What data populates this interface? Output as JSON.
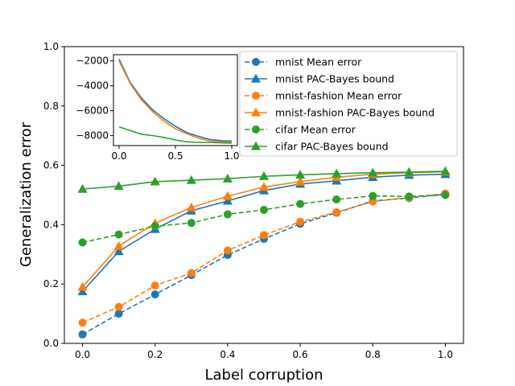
{
  "chart_data": [
    {
      "type": "line",
      "title": "",
      "xlabel": "Label corruption",
      "ylabel": "Generalization error",
      "xlim": [
        -0.05,
        1.05
      ],
      "ylim": [
        0.0,
        1.0
      ],
      "xticks": [
        "0.0",
        "0.2",
        "0.4",
        "0.6",
        "0.8",
        "1.0"
      ],
      "yticks": [
        "0.0",
        "0.2",
        "0.4",
        "0.6",
        "0.8",
        "1.0"
      ],
      "grid": false,
      "legend_position": "top-right",
      "x": [
        0.0,
        0.1,
        0.2,
        0.3,
        0.4,
        0.5,
        0.6,
        0.7,
        0.8,
        0.9,
        1.0
      ],
      "series": [
        {
          "name": "mnist Mean error",
          "color": "#1f77b4",
          "linestyle": "dashed",
          "marker": "circle",
          "values": [
            0.03,
            0.1,
            0.165,
            0.23,
            0.298,
            0.352,
            0.403,
            0.44,
            0.48,
            0.49,
            0.503
          ]
        },
        {
          "name": "mnist PAC-Bayes bound",
          "color": "#1f77b4",
          "linestyle": "solid",
          "marker": "triangle",
          "values": [
            0.175,
            0.31,
            0.385,
            0.447,
            0.48,
            0.515,
            0.537,
            0.548,
            0.56,
            0.567,
            0.57
          ]
        },
        {
          "name": "mnist-fashion Mean error",
          "color": "#ff7f0e",
          "linestyle": "dashed",
          "marker": "circle",
          "values": [
            0.07,
            0.123,
            0.195,
            0.237,
            0.313,
            0.365,
            0.41,
            0.442,
            0.478,
            0.492,
            0.505
          ]
        },
        {
          "name": "mnist-fashion PAC-Bayes bound",
          "color": "#ff7f0e",
          "linestyle": "solid",
          "marker": "triangle",
          "values": [
            0.19,
            0.328,
            0.405,
            0.458,
            0.496,
            0.527,
            0.545,
            0.56,
            0.57,
            0.575,
            0.578
          ]
        },
        {
          "name": "cifar Mean error",
          "color": "#2ca02c",
          "linestyle": "dashed",
          "marker": "circle",
          "values": [
            0.34,
            0.367,
            0.395,
            0.406,
            0.435,
            0.45,
            0.47,
            0.485,
            0.497,
            0.495,
            0.5
          ]
        },
        {
          "name": "cifar PAC-Bayes bound",
          "color": "#2ca02c",
          "linestyle": "solid",
          "marker": "triangle",
          "values": [
            0.52,
            0.53,
            0.545,
            0.55,
            0.555,
            0.563,
            0.568,
            0.572,
            0.575,
            0.577,
            0.58
          ]
        }
      ]
    },
    {
      "type": "line",
      "title": "",
      "xlabel": "",
      "ylabel": "",
      "xlim": [
        -0.05,
        1.05
      ],
      "ylim": [
        -8800,
        -1500
      ],
      "xticks": [
        "0.0",
        "0.5",
        "1.0"
      ],
      "yticks": [
        "−2000",
        "−4000",
        "−6000",
        "−8000"
      ],
      "grid": false,
      "x": [
        0.0,
        0.1,
        0.2,
        0.3,
        0.4,
        0.5,
        0.6,
        0.7,
        0.8,
        0.9,
        1.0
      ],
      "series": [
        {
          "color": "#1f77b4",
          "values": [
            -1850,
            -3750,
            -5000,
            -5950,
            -6650,
            -7250,
            -7750,
            -8050,
            -8300,
            -8400,
            -8450
          ]
        },
        {
          "color": "#ff7f0e",
          "values": [
            -2000,
            -3850,
            -5150,
            -6100,
            -6850,
            -7450,
            -7850,
            -8200,
            -8420,
            -8500,
            -8550
          ]
        },
        {
          "color": "#2ca02c",
          "values": [
            -7300,
            -7600,
            -7900,
            -8000,
            -8150,
            -8350,
            -8500,
            -8550,
            -8550,
            -8580,
            -8600
          ]
        }
      ]
    }
  ]
}
